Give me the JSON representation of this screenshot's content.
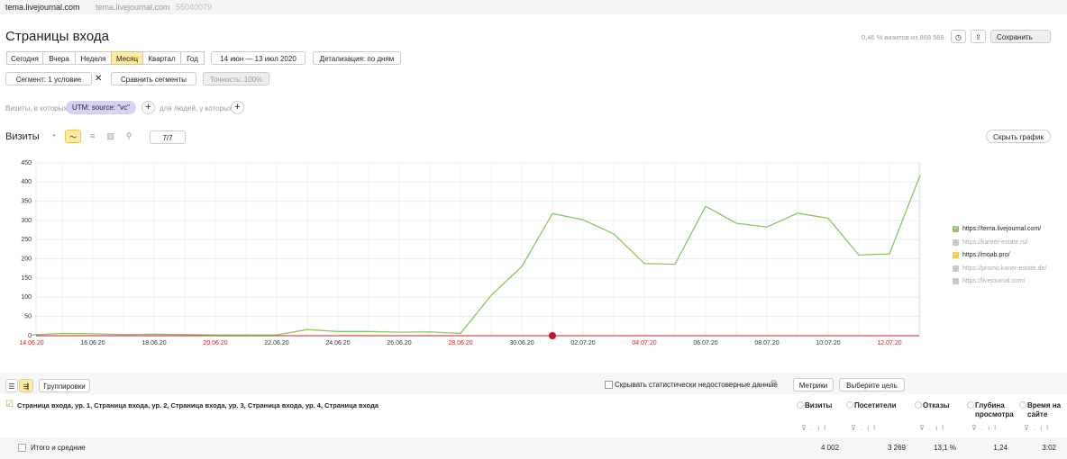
{
  "header": {
    "site": "tema.livejournal.com",
    "site_secondary": "tema.livejournal.com",
    "counter_id": "55040079"
  },
  "title": "Страницы входа",
  "sample_info": "0,46 % визитов из 868 569",
  "save_button": "Сохранить",
  "periods": [
    "Сегодня",
    "Вчера",
    "Неделя",
    "Месяц",
    "Квартал",
    "Год"
  ],
  "selected_period": 3,
  "date_range": "14 июн — 13 июл 2020",
  "detail": "Детализация: по дням",
  "segment": "Сегмент: 1 условие",
  "compare": "Сравнить сегменты",
  "accuracy": "Точность: 100%",
  "filter": {
    "prefix": "Визиты, в которых",
    "chip": "UTM: source: \"vc\"",
    "suffix": "для людей, у которых"
  },
  "chart_section": {
    "title": "Визиты",
    "series_count": "7/7",
    "hide": "Скрыть график"
  },
  "chart_data": {
    "type": "line",
    "categories": [
      "14.06.20",
      null,
      "16.06.20",
      null,
      "18.06.20",
      null,
      "20.06.20",
      null,
      "22.06.20",
      null,
      "24.06.20",
      null,
      "26.06.20",
      null,
      "28.06.20",
      null,
      "30.06.20",
      null,
      "02.07.20",
      null,
      "04.07.20",
      null,
      "06.07.20",
      null,
      "08.07.20",
      null,
      "10.07.20",
      null,
      "12.07.20",
      null
    ],
    "weekends": [
      0,
      6,
      14,
      20,
      28
    ],
    "weekend_color": "#cc2222",
    "series": [
      {
        "name": "https://tema.livejournal.com/",
        "color": "#8cc466",
        "values": [
          2,
          6,
          5,
          3,
          4,
          3,
          2,
          2,
          2,
          16,
          11,
          11,
          9,
          10,
          6,
          105,
          180,
          318,
          302,
          265,
          188,
          186,
          337,
          293,
          283,
          319,
          306,
          210,
          213,
          418
        ]
      }
    ],
    "ylim": [
      0,
      450
    ],
    "yticks": [
      0,
      50,
      100,
      150,
      200,
      250,
      300,
      350,
      400,
      450
    ],
    "grid": true
  },
  "legend": [
    {
      "name": "https://tema.livejournal.com/",
      "color": "#8cc466",
      "checked": true
    },
    {
      "name": "https://kareer-estate.ru/",
      "color": "#c8c8c8",
      "checked": false
    },
    {
      "name": "https://moab.pro/",
      "color": "#f5c945",
      "checked": true
    },
    {
      "name": "https://promo.kaner-estate.de/",
      "color": "#c8c8c8",
      "checked": false
    },
    {
      "name": "https://livejournal.com/",
      "color": "#c8c8c8",
      "checked": false
    }
  ],
  "table": {
    "groupings": "Группировки",
    "hide_unreliable": "Скрывать статистически недостоверные данные",
    "metrics": "Метрики",
    "goal": "Выберите цель",
    "dimension": "Страница входа, ур. 1, Страница входа, ур. 2, Страница входа, ур. 3, Страница входа, ур. 4, Страница входа",
    "columns": [
      "Визиты",
      "Посетители",
      "Отказы",
      "Глубина просмотра",
      "Время на сайте"
    ],
    "totals_label": "Итого и средние",
    "totals": [
      "4 002",
      "3 269",
      "13,1 %",
      "1,24",
      "3:02"
    ]
  }
}
